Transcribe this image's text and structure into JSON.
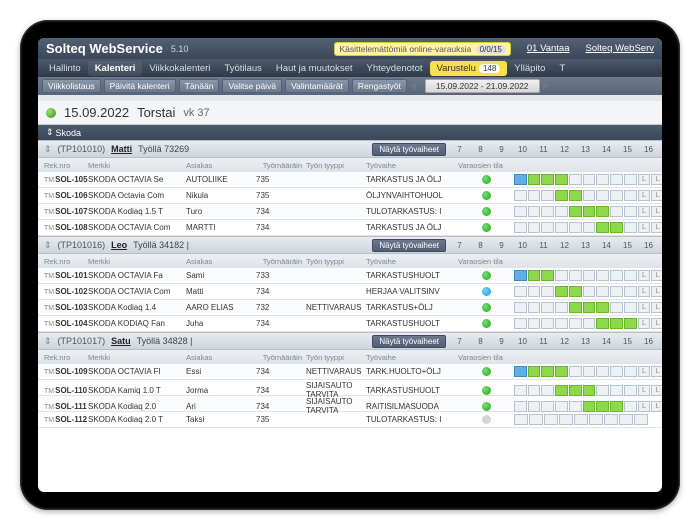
{
  "colors": {
    "accent_yellow": "#f7e04a",
    "header_grad_top": "#526175",
    "header_grad_bot": "#3b475a",
    "status_green": "#1f9e1f",
    "status_blue": "#1a9ed1",
    "status_none": "#d0d5db",
    "bar_green": "#8ed94a",
    "bar_blue": "#63aee5"
  },
  "titlebar": {
    "title": "Solteq WebService",
    "version": "5.10",
    "notice_label": "Käsittelemättömiä online-varauksia",
    "notice_badge": "0/0/15",
    "branch": "01 Vantaa",
    "right_link": "Solteq WebServ"
  },
  "nav": {
    "items": [
      "Hallinto",
      "Kalenteri",
      "Viikkokalenteri",
      "Työtilaus",
      "Haut ja muutokset",
      "Yhteydenotot",
      "Varustelu",
      "Ylläpito",
      "T"
    ],
    "active_index": 1,
    "highlight_index": 6,
    "highlight_badge": "148"
  },
  "subnav": {
    "buttons": [
      "Viikkolistaus",
      "Päivitä kalenteri",
      "Tänään",
      "Valitse päivä",
      "Valintamäärät",
      "Rengastyöt"
    ],
    "date_range": "15.09.2022 - 21.09.2022"
  },
  "datehdr": {
    "date": "15.09.2022",
    "weekday": "Torstai",
    "week": "vk 37"
  },
  "section": {
    "label": "Skoda"
  },
  "col_labels": {
    "reg": "Rek.nro",
    "brand": "Merkki",
    "customer": "Asiakas",
    "workorder": "Työmääräin",
    "type": "Työn tyyppi",
    "phase": "Työvaihe",
    "status": "Varaosien tila"
  },
  "group_btn": "Näytä työvaiheet",
  "hours": [
    "7",
    "8",
    "9",
    "10",
    "11",
    "12",
    "13",
    "14",
    "15",
    "16"
  ],
  "groups": [
    {
      "key": "(TP101010)",
      "name": "Matti",
      "load_label": "Työllä 73269",
      "rows": [
        {
          "reg": "SOL-105",
          "brand": "SKODA OCTAVIA Se",
          "cust": "AUTOLIIKE",
          "wo": "735",
          "type": "",
          "phase": "TARKASTUS JA ÖLJ",
          "dot": "g",
          "bars": [
            [
              "b",
              0
            ],
            [
              "g",
              1
            ],
            [
              "g",
              2
            ],
            [
              "g",
              3
            ]
          ],
          "tail": "LL"
        },
        {
          "reg": "SOL-106",
          "brand": "SKODA Octavia Com",
          "cust": "Nikula",
          "wo": "735",
          "type": "",
          "phase": "ÖLJYNVAIHTOHUOL",
          "dot": "g",
          "bars": [
            [
              "g",
              3
            ],
            [
              "g",
              4
            ]
          ],
          "tail": "LL"
        },
        {
          "reg": "SOL-107",
          "brand": "SKODA Kodiaq 1.5 T",
          "cust": "Turo",
          "wo": "734",
          "type": "",
          "phase": "TULOTARKASTUS: I",
          "dot": "g",
          "bars": [
            [
              "g",
              4
            ],
            [
              "g",
              5
            ],
            [
              "g",
              6
            ]
          ],
          "tail": "LL"
        },
        {
          "reg": "SOL-108",
          "brand": "SKODA OCTAVIA Com",
          "cust": "MARTTI",
          "wo": "734",
          "type": "",
          "phase": "TARKASTUS JA ÖLJ",
          "dot": "g",
          "bars": [
            [
              "g",
              6
            ],
            [
              "g",
              7
            ]
          ],
          "tail": "LL"
        }
      ]
    },
    {
      "key": "(TP101016)",
      "name": "Leo",
      "load_label": "Työllä  34182 |",
      "rows": [
        {
          "reg": "SOL-101",
          "brand": "SKODA OCTAVIA Fa",
          "cust": "Sami",
          "wo": "733",
          "type": "",
          "phase": "TARKASTUSHUOLT",
          "dot": "g",
          "bars": [
            [
              "b",
              0
            ],
            [
              "g",
              1
            ],
            [
              "g",
              2
            ]
          ],
          "tail": "LL"
        },
        {
          "reg": "SOL-102",
          "brand": "SKODA OCTAVIA Com",
          "cust": "Matti",
          "wo": "734",
          "type": "",
          "phase": "HERJAA VALITSINV",
          "dot": "b",
          "bars": [
            [
              "g",
              3
            ],
            [
              "g",
              4
            ]
          ],
          "tail": "LL"
        },
        {
          "reg": "SOL-103",
          "brand": "SKODA Kodiaq 1.4",
          "cust": "AARO ELIAS",
          "wo": "732",
          "type": "NETTIVARAUS",
          "phase": "TARKASTUS+ÖLJ",
          "dot": "g",
          "bars": [
            [
              "g",
              4
            ],
            [
              "g",
              5
            ],
            [
              "g",
              6
            ]
          ],
          "tail": "LL"
        },
        {
          "reg": "SOL-104",
          "brand": "SKODA KODIAQ Fan",
          "cust": "Juha",
          "wo": "734",
          "type": "",
          "phase": "TARKASTUSHUOLT",
          "dot": "g",
          "bars": [
            [
              "g",
              6
            ],
            [
              "g",
              7
            ],
            [
              "g",
              8
            ]
          ],
          "tail": "LL"
        }
      ]
    },
    {
      "key": "(TP101017)",
      "name": "Satu",
      "load_label": "Työllä  34828 |",
      "rows": [
        {
          "reg": "SOL-109",
          "brand": "SKODA OCTAVIA FI",
          "cust": "Essi",
          "wo": "734",
          "type": "NETTIVARAUS",
          "phase": "TARK.HUOLTO+ÖLJ",
          "dot": "g",
          "bars": [
            [
              "b",
              0
            ],
            [
              "g",
              1
            ],
            [
              "g",
              2
            ],
            [
              "g",
              3
            ]
          ],
          "tail": "LL"
        },
        {
          "reg": "SOL-110",
          "brand": "SKODA Kamiq 1.0 T",
          "cust": "Jorma",
          "wo": "734",
          "type": "SIJAISAUTO TARVITA",
          "phase": "TARKASTUSHUOLT",
          "dot": "g",
          "bars": [
            [
              "g",
              3
            ],
            [
              "g",
              4
            ],
            [
              "g",
              5
            ]
          ],
          "tail": "LL"
        },
        {
          "reg": "SOL-111",
          "brand": "SKODA Kodiaq 2.0",
          "cust": "Ari",
          "wo": "734",
          "type": "SIJAISAUTO TARVITA",
          "phase": "RAITISILMASUODA",
          "dot": "g",
          "bars": [
            [
              "g",
              5
            ],
            [
              "g",
              6
            ],
            [
              "g",
              7
            ]
          ],
          "tail": "LL"
        },
        {
          "reg": "SOL-112",
          "brand": "SKODA Kodiaq 2.0 T",
          "cust": "Taksi",
          "wo": "735",
          "type": "",
          "phase": "TULOTARKASTUS: I",
          "dot": "n",
          "bars": [],
          "tail": ""
        }
      ]
    }
  ]
}
